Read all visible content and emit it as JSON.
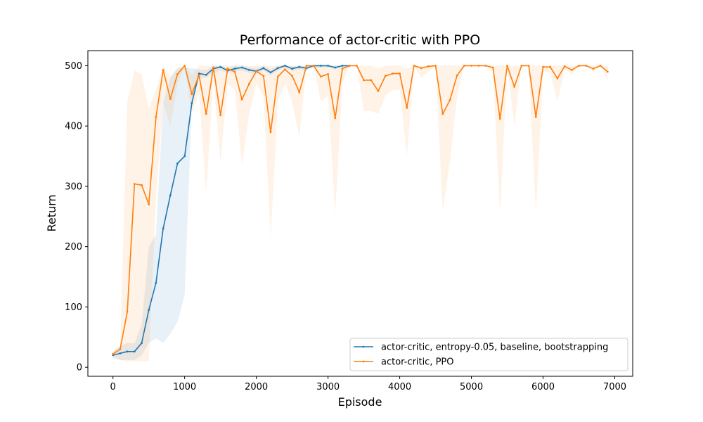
{
  "chart_data": {
    "type": "line",
    "title": "Performance of actor-critic with PPO",
    "xlabel": "Episode",
    "ylabel": "Return",
    "xlim": [
      -350,
      7250
    ],
    "ylim": [
      -15,
      525
    ],
    "xticks": [
      0,
      1000,
      2000,
      3000,
      4000,
      5000,
      6000,
      7000
    ],
    "yticks": [
      0,
      100,
      200,
      300,
      400,
      500
    ],
    "grid": false,
    "legend_position": "lower-right",
    "series": [
      {
        "name": "actor-critic, entropy-0.05, baseline, bootstrapping",
        "color": "#1f77b4",
        "x": [
          0,
          100,
          200,
          300,
          400,
          500,
          600,
          700,
          800,
          900,
          1000,
          1100,
          1200,
          1300,
          1400,
          1500,
          1600,
          1700,
          1800,
          1900,
          2000,
          2100,
          2200,
          2300,
          2400,
          2500,
          2600,
          2700,
          2800,
          2900,
          3000,
          3100,
          3200,
          3300
        ],
        "y": [
          20,
          23,
          26,
          26,
          40,
          95,
          140,
          230,
          285,
          338,
          350,
          438,
          487,
          485,
          495,
          498,
          492,
          495,
          497,
          493,
          491,
          496,
          489,
          496,
          500,
          495,
          498,
          496,
          500,
          500,
          500,
          497,
          500,
          500
        ],
        "band_lower": [
          15,
          12,
          12,
          12,
          20,
          40,
          48,
          40,
          55,
          75,
          120,
          440,
          480,
          480,
          488,
          492,
          488,
          490,
          492,
          488,
          486,
          492,
          484,
          492,
          497,
          491,
          494,
          492,
          497,
          497,
          497,
          494,
          497,
          497
        ],
        "band_upper": [
          25,
          35,
          40,
          40,
          70,
          200,
          220,
          440,
          480,
          495,
          498,
          496,
          494,
          492,
          500,
          500,
          497,
          500,
          500,
          498,
          496,
          500,
          494,
          500,
          500,
          499,
          500,
          500,
          500,
          500,
          500,
          500,
          500,
          500
        ]
      },
      {
        "name": "actor-critic, PPO",
        "color": "#ff7f0e",
        "x": [
          0,
          100,
          200,
          300,
          400,
          500,
          600,
          700,
          800,
          900,
          1000,
          1100,
          1200,
          1300,
          1400,
          1500,
          1600,
          1700,
          1800,
          1900,
          2000,
          2100,
          2200,
          2300,
          2400,
          2500,
          2600,
          2700,
          2800,
          2900,
          3000,
          3100,
          3200,
          3300,
          3400,
          3500,
          3600,
          3700,
          3800,
          3900,
          4000,
          4100,
          4200,
          4300,
          4400,
          4500,
          4600,
          4700,
          4800,
          4900,
          5000,
          5100,
          5200,
          5300,
          5400,
          5500,
          5600,
          5700,
          5800,
          5900,
          6000,
          6100,
          6200,
          6300,
          6400,
          6500,
          6600,
          6700,
          6800,
          6900
        ],
        "y": [
          22,
          30,
          92,
          304,
          302,
          270,
          415,
          493,
          445,
          486,
          500,
          453,
          484,
          420,
          497,
          418,
          495,
          490,
          444,
          470,
          491,
          483,
          390,
          482,
          494,
          483,
          456,
          500,
          500,
          482,
          486,
          413,
          495,
          500,
          500,
          476,
          476,
          458,
          483,
          487,
          487,
          430,
          500,
          496,
          499,
          500,
          420,
          443,
          484,
          500,
          500,
          500,
          500,
          497,
          412,
          500,
          465,
          500,
          500,
          415,
          498,
          498,
          479,
          499,
          493,
          500,
          500,
          495,
          500,
          490
        ],
        "band_lower": [
          18,
          12,
          10,
          10,
          10,
          10,
          280,
          440,
          400,
          470,
          500,
          420,
          455,
          290,
          480,
          340,
          470,
          460,
          335,
          420,
          470,
          450,
          215,
          440,
          470,
          440,
          380,
          500,
          500,
          440,
          450,
          255,
          470,
          500,
          500,
          425,
          425,
          420,
          450,
          460,
          460,
          350,
          500,
          480,
          490,
          500,
          260,
          340,
          450,
          500,
          500,
          500,
          500,
          490,
          255,
          500,
          400,
          500,
          500,
          255,
          490,
          490,
          440,
          495,
          485,
          500,
          500,
          490,
          500,
          475
        ],
        "band_upper": [
          26,
          35,
          440,
          492,
          487,
          430,
          460,
          500,
          482,
          498,
          500,
          485,
          500,
          500,
          500,
          500,
          500,
          500,
          500,
          500,
          500,
          500,
          500,
          500,
          500,
          500,
          500,
          500,
          500,
          500,
          500,
          500,
          500,
          500,
          500,
          500,
          500,
          495,
          500,
          500,
          500,
          495,
          500,
          500,
          500,
          500,
          500,
          500,
          500,
          500,
          500,
          500,
          500,
          500,
          500,
          500,
          500,
          500,
          500,
          500,
          500,
          500,
          500,
          500,
          500,
          500,
          500,
          500,
          500,
          500
        ]
      }
    ]
  }
}
